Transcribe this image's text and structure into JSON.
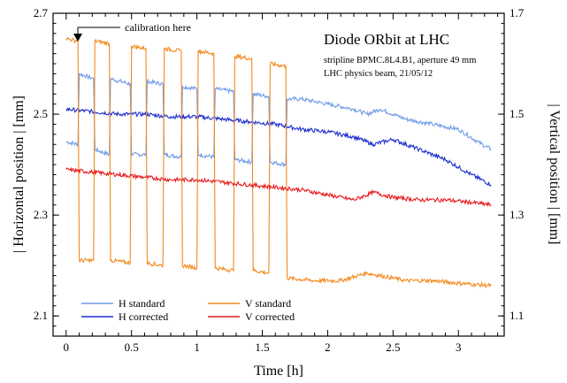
{
  "chart_data": {
    "type": "line",
    "title": "Diode ORbit at LHC",
    "subtitle_lines": [
      "stripline BPMC.8L4.B1,  aperture 49 mm",
      "LHC physics beam, 21/05/12"
    ],
    "annotation": "calibration here",
    "xlabel": "Time  [h]",
    "ylabel_left": "| Horizontal position |  [mm]",
    "ylabel_right": "| Vertical position |  [mm]",
    "xlim": [
      -0.1,
      3.35
    ],
    "ylim_left": [
      2.06,
      2.7
    ],
    "ylim_right": [
      1.06,
      1.7
    ],
    "xticks": [
      0,
      0.5,
      1,
      1.5,
      2,
      2.5,
      3
    ],
    "xtick_labels": [
      "0",
      "0.5",
      "1",
      "1.5",
      "2",
      "2.5",
      "3"
    ],
    "yticks_left": [
      2.1,
      2.3,
      2.5,
      2.7
    ],
    "ytick_labels_left": [
      "2.1",
      "2.3",
      "2.5",
      "2.7"
    ],
    "yticks_right": [
      1.1,
      1.3,
      1.5,
      1.7
    ],
    "ytick_labels_right": [
      "1.1",
      "1.3",
      "1.5",
      "1.7"
    ],
    "legend_position": "bottom-left",
    "series": [
      {
        "name": "H standard",
        "axis": "left",
        "color": "#6f9be6",
        "x": [
          0.0,
          0.09,
          0.1,
          0.21,
          0.22,
          0.33,
          0.34,
          0.49,
          0.5,
          0.61,
          0.62,
          0.74,
          0.75,
          0.88,
          0.89,
          1.0,
          1.01,
          1.13,
          1.14,
          1.28,
          1.29,
          1.42,
          1.43,
          1.55,
          1.56,
          1.68,
          1.69,
          1.8,
          2.0,
          2.2,
          2.3,
          2.4,
          2.6,
          2.8,
          3.0,
          3.15,
          3.25
        ],
        "y": [
          2.445,
          2.44,
          2.58,
          2.57,
          2.43,
          2.42,
          2.57,
          2.56,
          2.42,
          2.42,
          2.565,
          2.56,
          2.42,
          2.415,
          2.555,
          2.55,
          2.42,
          2.415,
          2.55,
          2.545,
          2.41,
          2.405,
          2.54,
          2.535,
          2.405,
          2.4,
          2.53,
          2.53,
          2.52,
          2.51,
          2.5,
          2.51,
          2.49,
          2.48,
          2.47,
          2.445,
          2.43
        ]
      },
      {
        "name": "H corrected",
        "axis": "left",
        "color": "#1f2fcf",
        "x": [
          0.0,
          0.2,
          0.4,
          0.6,
          0.8,
          1.0,
          1.2,
          1.4,
          1.6,
          1.7,
          1.8,
          2.0,
          2.2,
          2.35,
          2.5,
          2.7,
          2.9,
          3.1,
          3.25
        ],
        "y": [
          2.51,
          2.505,
          2.5,
          2.5,
          2.495,
          2.495,
          2.49,
          2.485,
          2.48,
          2.475,
          2.47,
          2.465,
          2.455,
          2.44,
          2.45,
          2.43,
          2.41,
          2.38,
          2.36
        ]
      },
      {
        "name": "V standard",
        "axis": "right",
        "color": "#f28a1e",
        "x": [
          0.0,
          0.09,
          0.1,
          0.21,
          0.22,
          0.33,
          0.34,
          0.49,
          0.5,
          0.61,
          0.62,
          0.74,
          0.75,
          0.88,
          0.89,
          1.0,
          1.01,
          1.13,
          1.14,
          1.28,
          1.29,
          1.42,
          1.43,
          1.55,
          1.56,
          1.68,
          1.69,
          1.9,
          2.1,
          2.3,
          2.4,
          2.6,
          2.8,
          3.0,
          3.25
        ],
        "y": [
          1.65,
          1.645,
          1.21,
          1.21,
          1.645,
          1.64,
          1.21,
          1.205,
          1.635,
          1.63,
          1.205,
          1.2,
          1.63,
          1.625,
          1.2,
          1.195,
          1.625,
          1.62,
          1.195,
          1.19,
          1.615,
          1.61,
          1.19,
          1.185,
          1.6,
          1.595,
          1.175,
          1.17,
          1.17,
          1.185,
          1.18,
          1.17,
          1.17,
          1.165,
          1.16
        ]
      },
      {
        "name": "V corrected",
        "axis": "right",
        "color": "#e8191b",
        "x": [
          0.0,
          0.2,
          0.4,
          0.6,
          0.8,
          1.0,
          1.2,
          1.4,
          1.6,
          1.8,
          2.0,
          2.2,
          2.35,
          2.5,
          2.7,
          2.9,
          3.1,
          3.25
        ],
        "y": [
          1.39,
          1.385,
          1.38,
          1.375,
          1.37,
          1.37,
          1.365,
          1.36,
          1.355,
          1.35,
          1.34,
          1.33,
          1.345,
          1.335,
          1.33,
          1.33,
          1.325,
          1.32
        ]
      }
    ]
  }
}
